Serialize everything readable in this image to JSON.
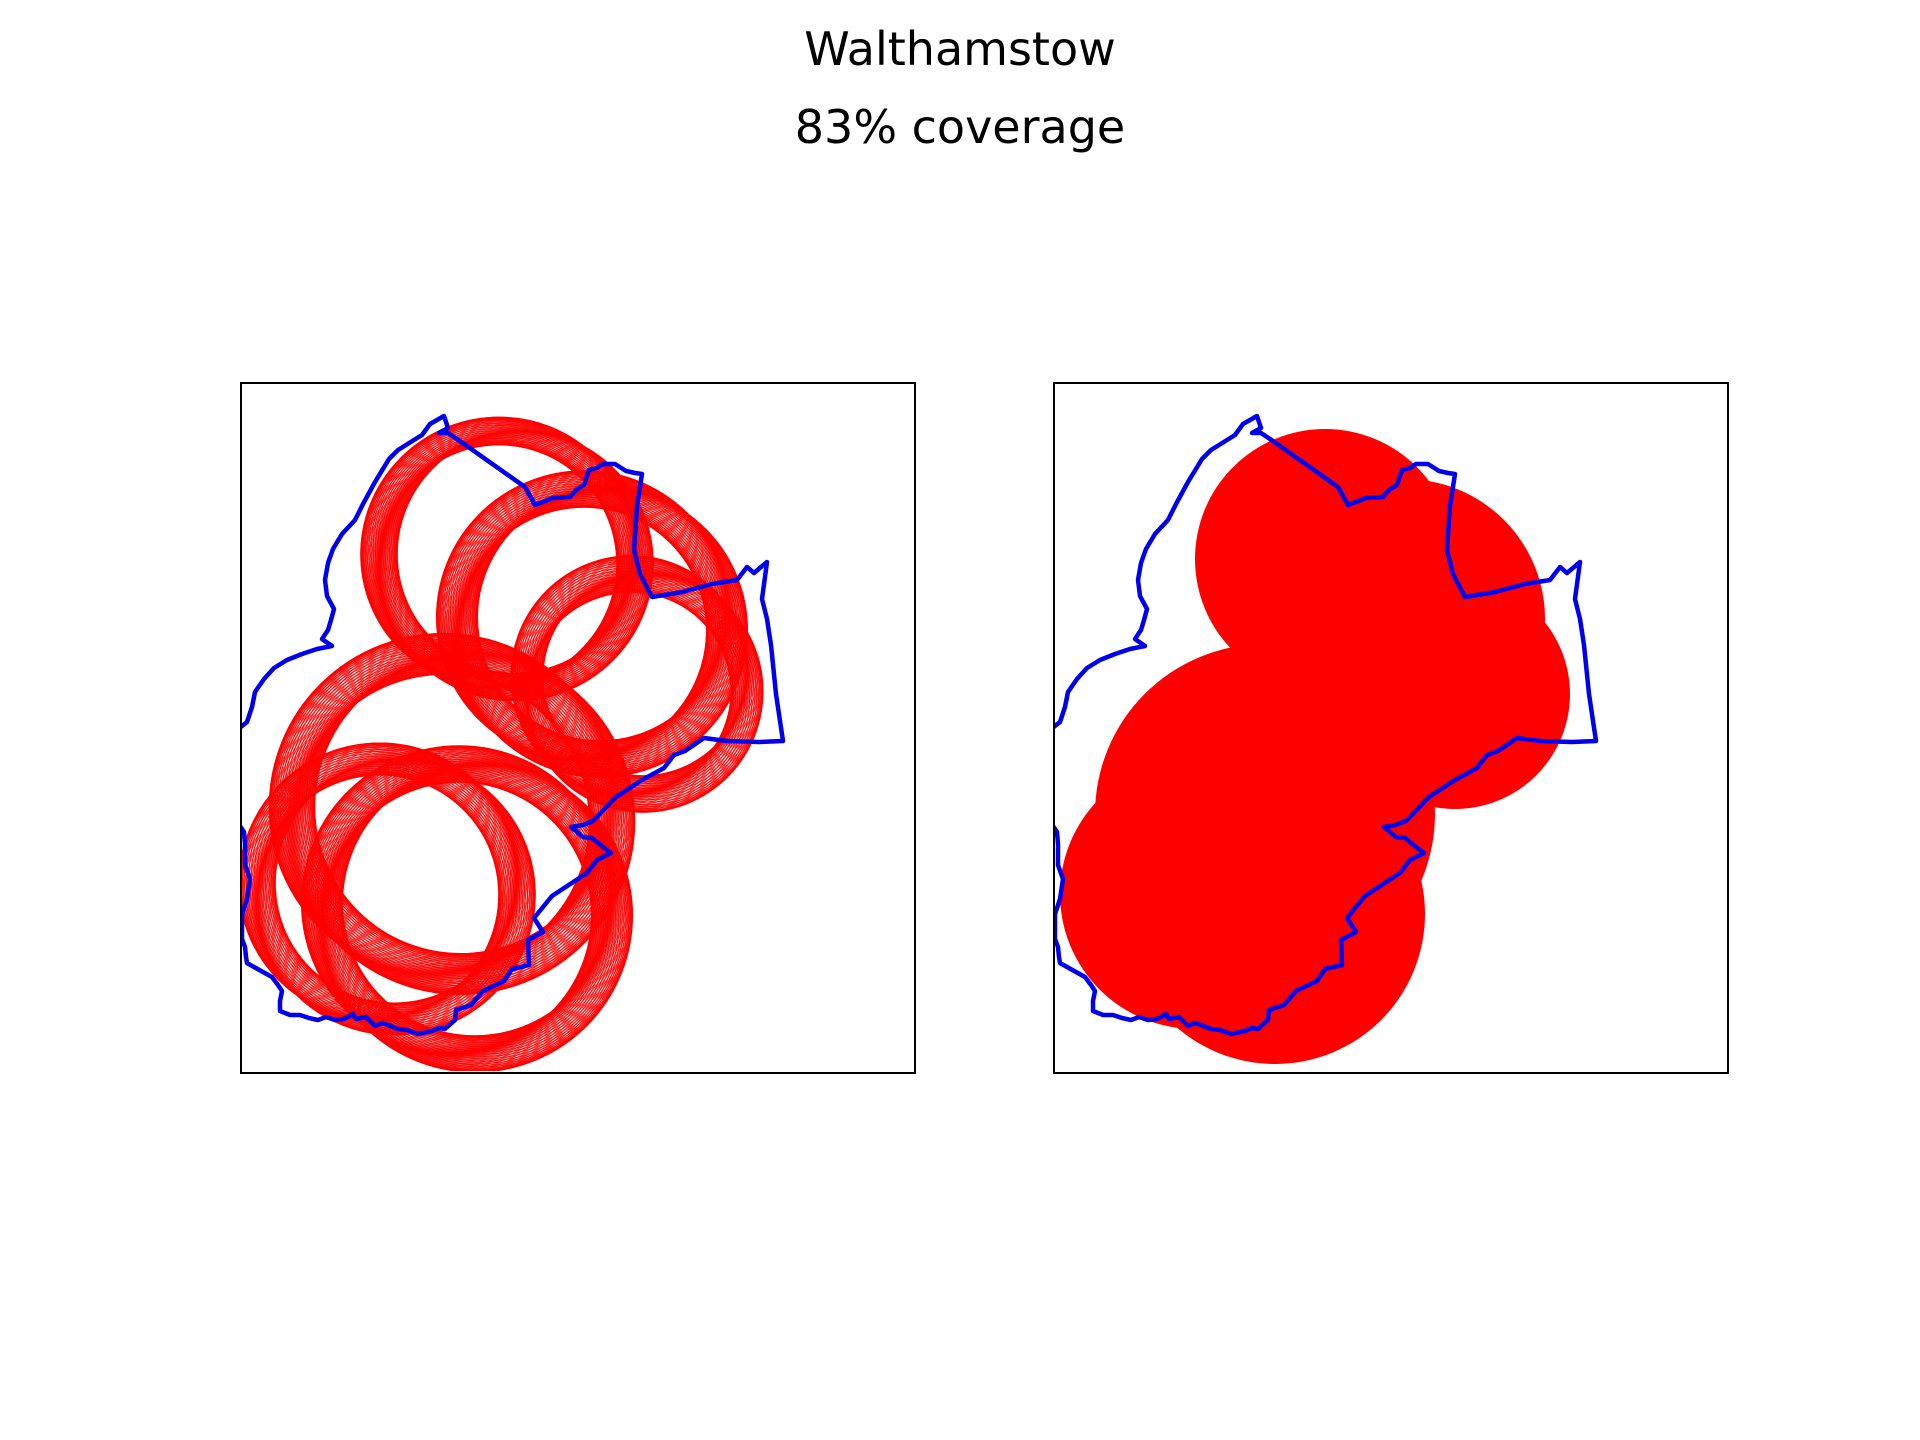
{
  "figure": {
    "title": "Walthamstow",
    "subtitle": "83% coverage"
  },
  "colors": {
    "boundary": "#0000ee",
    "coverage": "#ff0000",
    "frame": "#000000",
    "background": "#ffffff"
  },
  "panels": [
    {
      "name": "left",
      "style": "circle outlines (many overlapping red rings)"
    },
    {
      "name": "right",
      "style": "solid filled red union of circles"
    }
  ]
}
